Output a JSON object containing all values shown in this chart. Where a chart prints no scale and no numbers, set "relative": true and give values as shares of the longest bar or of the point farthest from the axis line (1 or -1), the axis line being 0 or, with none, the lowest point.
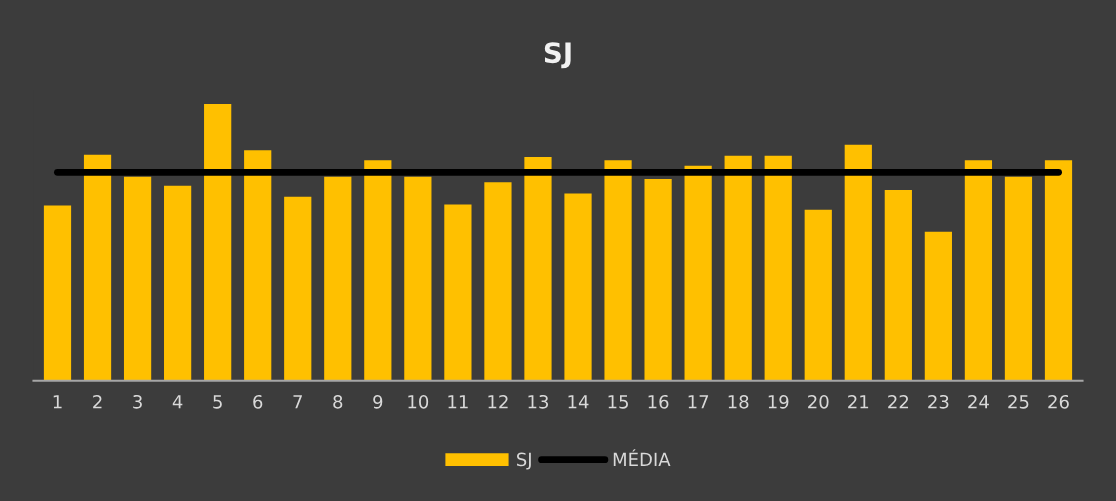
{
  "chart_data": {
    "type": "bar",
    "title": "SJ",
    "relative": true,
    "grid": false,
    "legend": "bottom",
    "categories": [
      "1",
      "2",
      "3",
      "4",
      "5",
      "6",
      "7",
      "8",
      "9",
      "10",
      "11",
      "12",
      "13",
      "14",
      "15",
      "16",
      "17",
      "18",
      "19",
      "20",
      "21",
      "22",
      "23",
      "24",
      "25",
      "26"
    ],
    "series": [
      {
        "name": "SJ",
        "color": "#ffc000",
        "values": [
          0.633,
          0.817,
          0.737,
          0.705,
          1,
          0.833,
          0.665,
          0.737,
          0.797,
          0.737,
          0.637,
          0.717,
          0.809,
          0.677,
          0.797,
          0.729,
          0.777,
          0.813,
          0.813,
          0.618,
          0.853,
          0.689,
          0.538,
          0.797,
          0.737,
          0.797
        ]
      },
      {
        "name": "MÉDIA",
        "type": "line",
        "color": "#000000",
        "values": [
          0.753,
          0.753,
          0.753,
          0.753,
          0.753,
          0.753,
          0.753,
          0.753,
          0.753,
          0.753,
          0.753,
          0.753,
          0.753,
          0.753,
          0.753,
          0.753,
          0.753,
          0.753,
          0.753,
          0.753,
          0.753,
          0.753,
          0.753,
          0.753,
          0.753,
          0.753
        ]
      }
    ]
  }
}
